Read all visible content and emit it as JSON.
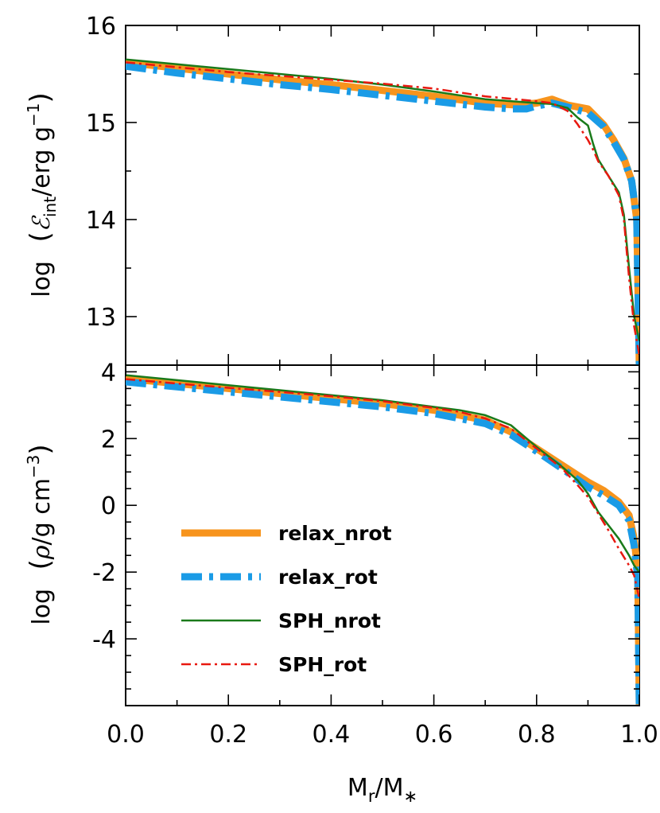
{
  "chart_data": [
    {
      "type": "line",
      "panel": "top",
      "ylabel": "log  (ℰint/erg g−1)",
      "ylabel_parts": {
        "prefix": "log",
        "symbol": "ℰ",
        "sub": "int",
        "unit": "/erg g",
        "sup": "−1"
      },
      "xlim": [
        0.0,
        1.0
      ],
      "ylim": [
        12.5,
        16.0
      ],
      "yticks": [
        13,
        14,
        15,
        16
      ],
      "ytick_labels": [
        "13",
        "14",
        "15",
        "16"
      ],
      "grid": false,
      "series": [
        {
          "name": "relax_nrot",
          "color": "#f7941d",
          "style": "solid",
          "width": 9,
          "x": [
            0.0,
            0.1,
            0.2,
            0.3,
            0.4,
            0.5,
            0.6,
            0.7,
            0.76,
            0.8,
            0.83,
            0.86,
            0.9,
            0.93,
            0.95,
            0.97,
            0.985,
            0.995,
            1.0
          ],
          "y": [
            15.62,
            15.56,
            15.5,
            15.44,
            15.39,
            15.33,
            15.27,
            15.2,
            15.18,
            15.2,
            15.24,
            15.18,
            15.14,
            14.98,
            14.82,
            14.63,
            14.4,
            14.0,
            12.5
          ]
        },
        {
          "name": "relax_rot",
          "color": "#1a9be6",
          "style": "dashdot",
          "width": 9,
          "x": [
            0.0,
            0.1,
            0.2,
            0.3,
            0.4,
            0.5,
            0.6,
            0.7,
            0.75,
            0.78,
            0.8,
            0.83,
            0.86,
            0.9,
            0.93,
            0.95,
            0.97,
            0.985,
            0.995,
            1.0
          ],
          "y": [
            15.58,
            15.51,
            15.45,
            15.39,
            15.34,
            15.28,
            15.22,
            15.16,
            15.14,
            15.14,
            15.17,
            15.2,
            15.16,
            15.1,
            14.96,
            14.8,
            14.62,
            14.4,
            14.0,
            12.5
          ]
        },
        {
          "name": "SPH_nrot",
          "color": "#1a7a1a",
          "style": "solid",
          "width": 2.5,
          "x": [
            0.0,
            0.1,
            0.2,
            0.3,
            0.4,
            0.5,
            0.6,
            0.7,
            0.8,
            0.83,
            0.86,
            0.88,
            0.9,
            0.91,
            0.92,
            0.94,
            0.96,
            0.97,
            0.98,
            0.99,
            1.0
          ],
          "y": [
            15.65,
            15.6,
            15.55,
            15.5,
            15.45,
            15.39,
            15.32,
            15.24,
            15.2,
            15.19,
            15.15,
            15.05,
            14.97,
            14.78,
            14.62,
            14.45,
            14.28,
            14.05,
            13.5,
            13.0,
            12.75
          ]
        },
        {
          "name": "SPH_rot",
          "color": "#e8180f",
          "style": "dashdot",
          "width": 2.5,
          "x": [
            0.0,
            0.1,
            0.2,
            0.3,
            0.4,
            0.5,
            0.6,
            0.7,
            0.8,
            0.83,
            0.86,
            0.88,
            0.9,
            0.91,
            0.92,
            0.94,
            0.96,
            0.97,
            0.98,
            0.99,
            1.0
          ],
          "y": [
            15.62,
            15.57,
            15.52,
            15.48,
            15.44,
            15.4,
            15.35,
            15.27,
            15.22,
            15.2,
            15.12,
            14.98,
            14.82,
            14.72,
            14.6,
            14.45,
            14.25,
            14.0,
            13.4,
            12.9,
            12.6
          ]
        }
      ]
    },
    {
      "type": "line",
      "panel": "bottom",
      "xlabel": "Mr/M∗",
      "xlabel_parts": {
        "m1": "M",
        "sub1": "r",
        "sep": "/",
        "m2": "M",
        "sub2": "∗"
      },
      "ylabel": "log  (ρ/g cm−3)",
      "ylabel_parts": {
        "prefix": "log",
        "symbol": "ρ",
        "unit": "/g cm",
        "sup": "−3"
      },
      "xlim": [
        0.0,
        1.0
      ],
      "ylim": [
        -6.0,
        4.2
      ],
      "xticks": [
        0.0,
        0.2,
        0.4,
        0.6,
        0.8,
        1.0
      ],
      "xtick_labels": [
        "0.0",
        "0.2",
        "0.4",
        "0.6",
        "0.8",
        "1.0"
      ],
      "yticks": [
        4,
        2,
        0,
        -2,
        -4
      ],
      "ytick_labels": [
        "4",
        "2",
        "0",
        "-2",
        "-4"
      ],
      "legend": {
        "position": "lower-left",
        "entries": [
          "relax_nrot",
          "relax_rot",
          "SPH_nrot",
          "SPH_rot"
        ]
      },
      "grid": false,
      "series": [
        {
          "name": "relax_nrot",
          "color": "#f7941d",
          "style": "solid",
          "width": 9,
          "x": [
            0.0,
            0.1,
            0.2,
            0.3,
            0.4,
            0.5,
            0.6,
            0.7,
            0.75,
            0.8,
            0.85,
            0.9,
            0.93,
            0.96,
            0.98,
            0.99,
            0.997,
            1.0
          ],
          "y": [
            3.8,
            3.65,
            3.5,
            3.35,
            3.2,
            3.05,
            2.85,
            2.55,
            2.2,
            1.7,
            1.2,
            0.7,
            0.45,
            0.1,
            -0.3,
            -1.0,
            -2.0,
            -6.0
          ]
        },
        {
          "name": "relax_rot",
          "color": "#1a9be6",
          "style": "dashdot",
          "width": 9,
          "x": [
            0.0,
            0.1,
            0.2,
            0.3,
            0.4,
            0.5,
            0.6,
            0.7,
            0.75,
            0.8,
            0.85,
            0.9,
            0.93,
            0.96,
            0.98,
            0.99,
            0.997,
            1.0
          ],
          "y": [
            3.7,
            3.55,
            3.4,
            3.25,
            3.1,
            2.95,
            2.75,
            2.45,
            2.12,
            1.62,
            1.1,
            0.55,
            0.3,
            0.0,
            -0.45,
            -1.2,
            -2.2,
            -6.0
          ]
        },
        {
          "name": "SPH_nrot",
          "color": "#1a7a1a",
          "style": "solid",
          "width": 2.5,
          "x": [
            0.0,
            0.1,
            0.2,
            0.3,
            0.4,
            0.5,
            0.6,
            0.65,
            0.7,
            0.75,
            0.8,
            0.85,
            0.88,
            0.9,
            0.92,
            0.94,
            0.96,
            0.98,
            0.99,
            1.0
          ],
          "y": [
            3.9,
            3.75,
            3.6,
            3.45,
            3.3,
            3.15,
            2.95,
            2.85,
            2.7,
            2.4,
            1.75,
            1.15,
            0.75,
            0.35,
            -0.2,
            -0.6,
            -1.0,
            -1.5,
            -1.8,
            -2.0
          ]
        },
        {
          "name": "SPH_rot",
          "color": "#e8180f",
          "style": "dashdot",
          "width": 2.5,
          "x": [
            0.0,
            0.1,
            0.2,
            0.3,
            0.4,
            0.5,
            0.6,
            0.65,
            0.7,
            0.75,
            0.8,
            0.85,
            0.88,
            0.9,
            0.92,
            0.94,
            0.96,
            0.98,
            0.99,
            1.0
          ],
          "y": [
            3.78,
            3.65,
            3.52,
            3.4,
            3.27,
            3.12,
            2.92,
            2.8,
            2.6,
            2.3,
            1.7,
            1.1,
            0.6,
            0.25,
            -0.25,
            -0.75,
            -1.3,
            -1.8,
            -2.1,
            -2.8
          ]
        }
      ]
    }
  ]
}
